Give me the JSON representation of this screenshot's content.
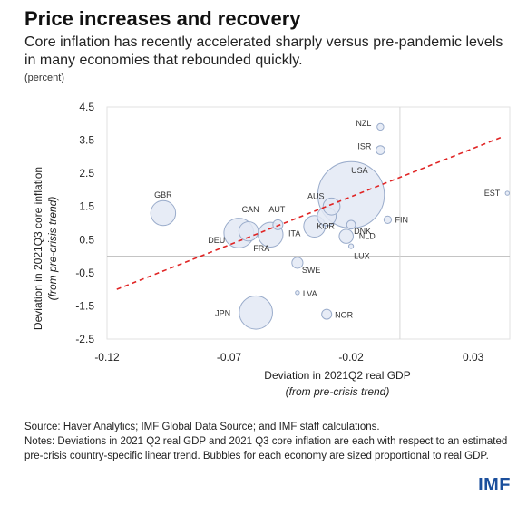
{
  "header": {
    "title": "Price increases and recovery",
    "subtitle": "Core inflation has recently accelerated sharply versus pre-pandemic levels in many economies that rebounded quickly.",
    "unit": "(percent)"
  },
  "footer": {
    "source": "Source: Haver Analytics; IMF Global Data Source; and IMF staff calculations.",
    "notes": "Notes: Deviations in 2021 Q2 real GDP and 2021 Q3 core inflation are each with respect to an estimated pre-crisis country-specific linear trend. Bubbles for each economy are sized proportional to real GDP."
  },
  "logo": "IMF",
  "colors": {
    "bubble_fill": "#e3e9f4",
    "bubble_stroke": "#9aaccb",
    "trend_line": "#e02424",
    "axis": "#bbbbbb"
  },
  "chart_data": {
    "type": "scatter",
    "xlabel": "Deviation in 2021Q2 real GDP",
    "xlabel_sub": "(from pre-crisis trend)",
    "ylabel": "Deviation in 2021Q3 core inflation",
    "ylabel_sub": "(from pre-crisis trend)",
    "xlim": [
      -0.12,
      0.045
    ],
    "ylim": [
      -2.5,
      4.5
    ],
    "xticks": [
      -0.12,
      -0.07,
      -0.02,
      0.03
    ],
    "xtick_labels": [
      "-0.12",
      "-0.07",
      "-0.02",
      "0.03"
    ],
    "yticks": [
      4.5,
      3.5,
      2.5,
      1.5,
      0.5,
      -0.5,
      -1.5,
      -2.5
    ],
    "ytick_labels": [
      "4.5",
      "3.5",
      "2.5",
      "1.5",
      "0.5",
      "-0.5",
      "-1.5",
      "-2.5"
    ],
    "trend_line": {
      "x": [
        -0.116,
        0.042
      ],
      "y": [
        -1.0,
        3.6
      ],
      "style": "dashed"
    },
    "points": [
      {
        "label": "NZL",
        "x": -0.008,
        "y": 3.9,
        "size": 0.2
      },
      {
        "label": "ISR",
        "x": -0.008,
        "y": 3.2,
        "size": 0.35
      },
      {
        "label": "USA",
        "x": -0.02,
        "y": 1.85,
        "size": 20.0
      },
      {
        "label": "AUS",
        "x": -0.028,
        "y": 1.5,
        "size": 1.3
      },
      {
        "label": "EST",
        "x": 0.044,
        "y": 1.9,
        "size": 0.03
      },
      {
        "label": "GBR",
        "x": -0.097,
        "y": 1.3,
        "size": 2.8
      },
      {
        "label": "FIN",
        "x": -0.005,
        "y": 1.1,
        "size": 0.25
      },
      {
        "label": "CAN",
        "x": -0.062,
        "y": 0.75,
        "size": 1.7
      },
      {
        "label": "AUT",
        "x": -0.05,
        "y": 0.95,
        "size": 0.45
      },
      {
        "label": "DNK",
        "x": -0.02,
        "y": 0.95,
        "size": 0.35
      },
      {
        "label": "DEU",
        "x": -0.066,
        "y": 0.7,
        "size": 4.0
      },
      {
        "label": "FRA",
        "x": -0.053,
        "y": 0.65,
        "size": 2.8
      },
      {
        "label": "ITA",
        "x": -0.035,
        "y": 0.9,
        "size": 2.1
      },
      {
        "label": "NLD",
        "x": -0.022,
        "y": 0.6,
        "size": 0.9
      },
      {
        "label": "KOR",
        "x": -0.03,
        "y": 1.2,
        "size": 1.6
      },
      {
        "label": "LUX",
        "x": -0.02,
        "y": 0.3,
        "size": 0.1
      },
      {
        "label": "SWE",
        "x": -0.042,
        "y": -0.2,
        "size": 0.55
      },
      {
        "label": "LVA",
        "x": -0.042,
        "y": -1.1,
        "size": 0.05
      },
      {
        "label": "JPN",
        "x": -0.059,
        "y": -1.7,
        "size": 5.0
      },
      {
        "label": "NOR",
        "x": -0.03,
        "y": -1.75,
        "size": 0.45
      }
    ]
  }
}
